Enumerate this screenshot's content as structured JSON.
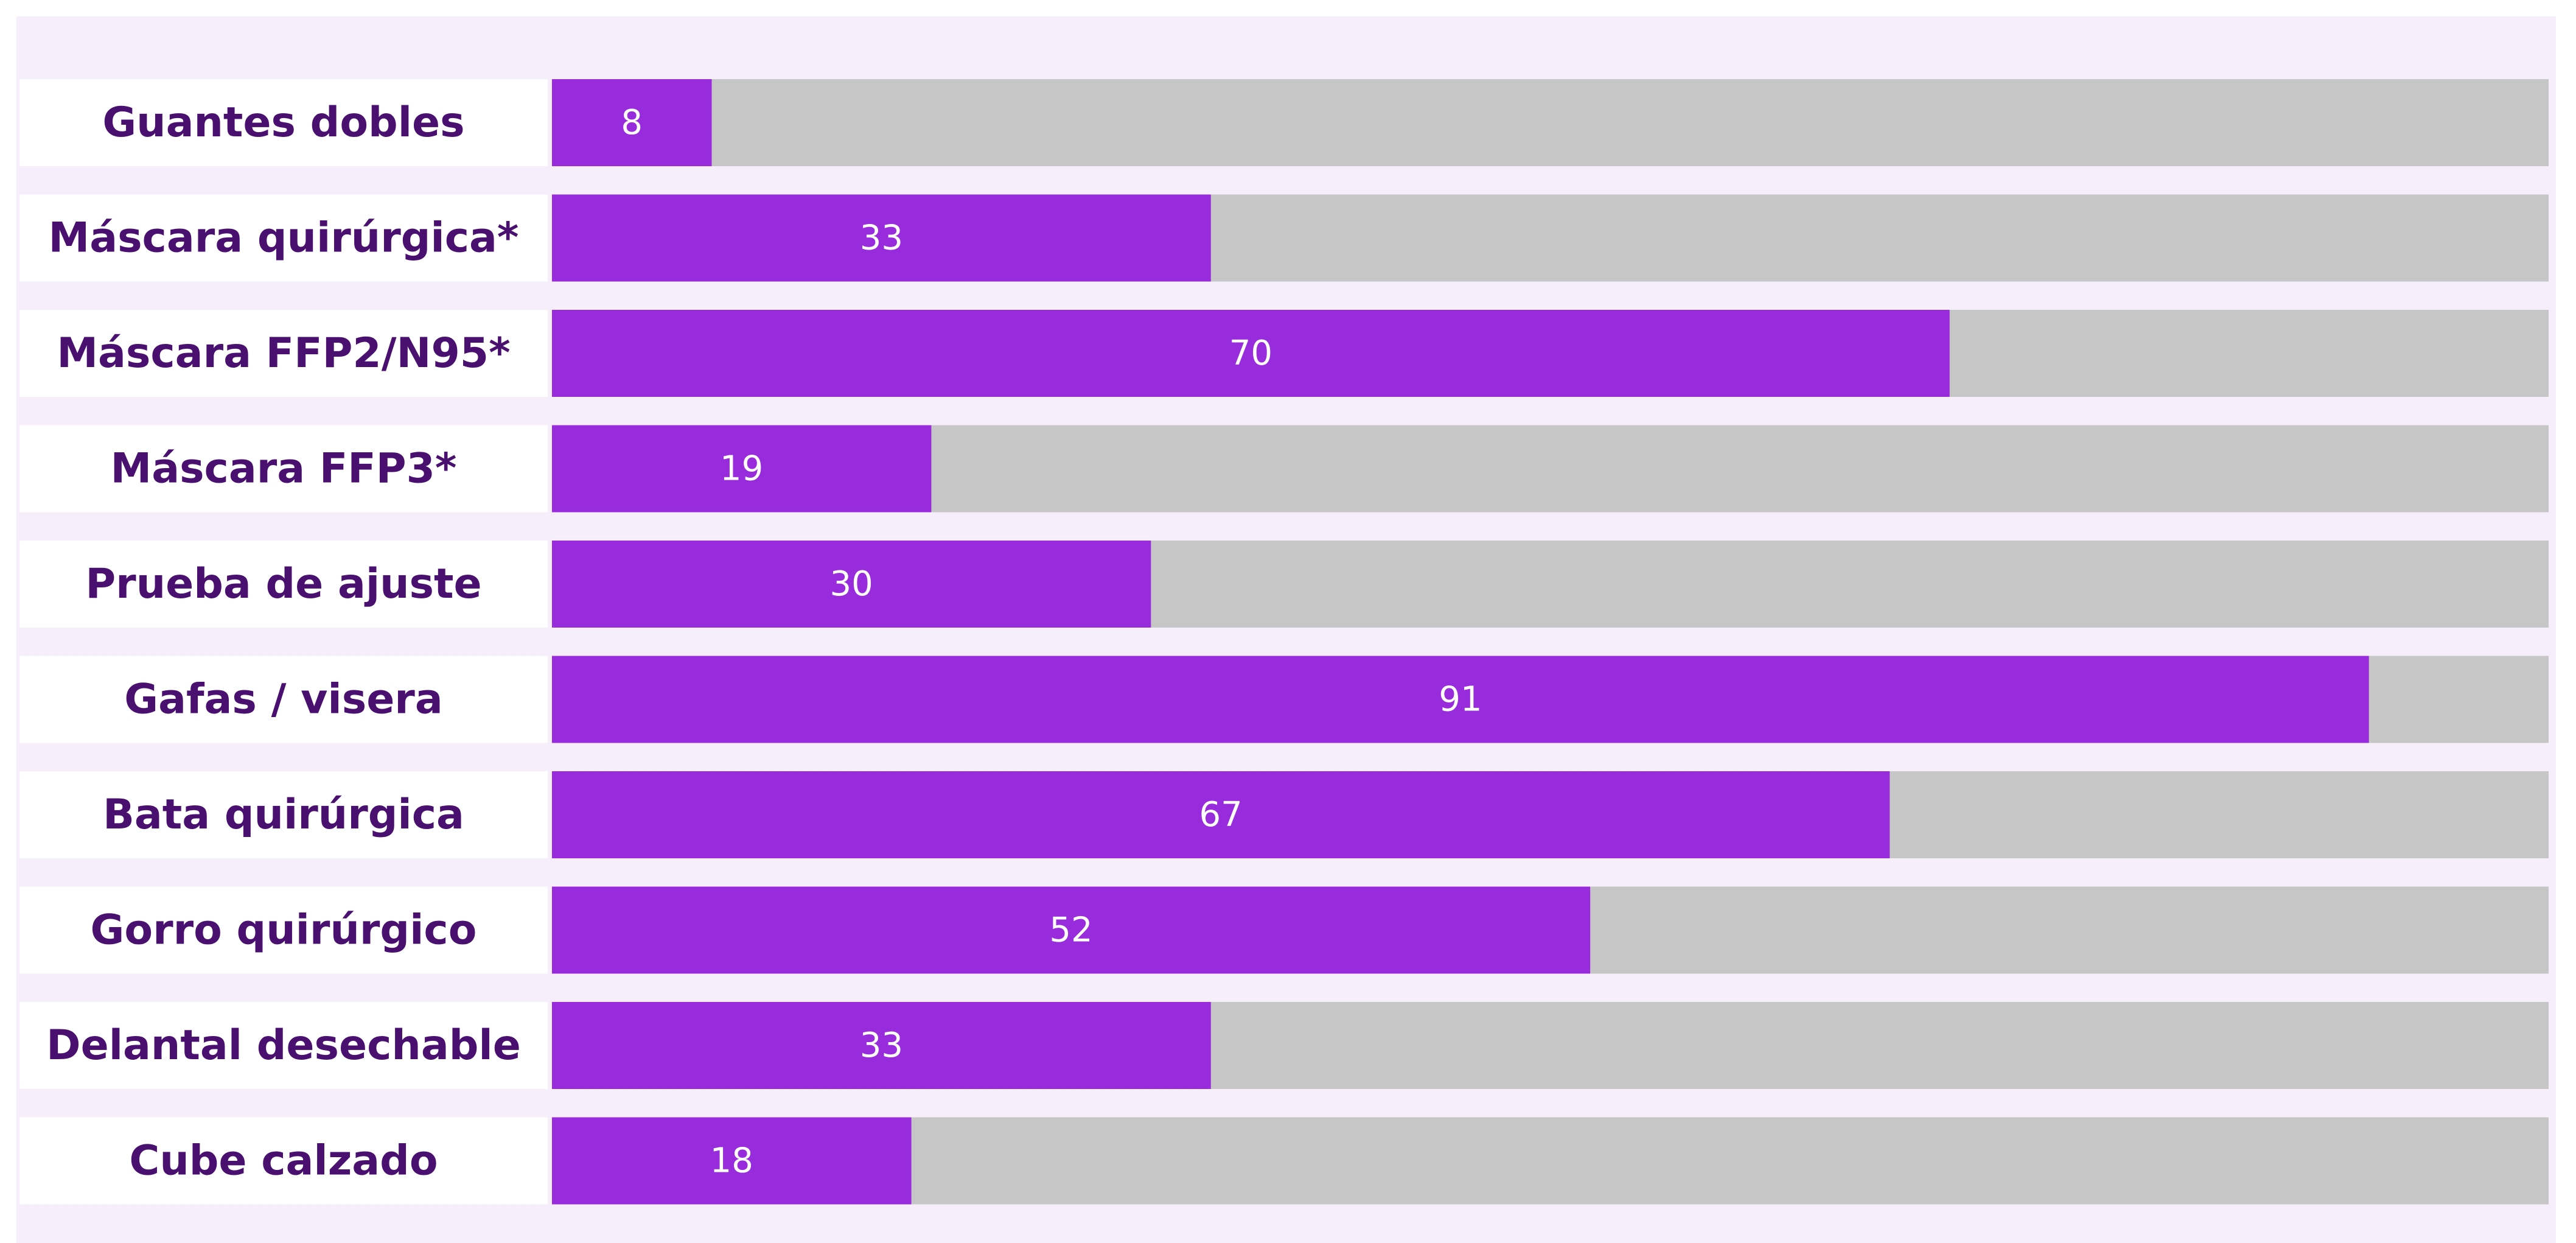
{
  "chart_data": {
    "type": "bar",
    "orientation": "horizontal",
    "categories": [
      "Guantes dobles",
      "Máscara quirúrgica*",
      "Máscara FFP2/N95*",
      "Máscara FFP3*",
      "Prueba de ajuste",
      "Gafas / visera",
      "Bata quirúrgica",
      "Gorro quirúrgico",
      "Delantal desechable",
      "Cube calzado"
    ],
    "values": [
      8,
      33,
      70,
      19,
      30,
      91,
      67,
      52,
      33,
      18
    ],
    "xlim": [
      0,
      100
    ],
    "grid": false,
    "legend": "none"
  },
  "colors": {
    "panel_background": "#f7eefc",
    "label_background": "#ffffff",
    "label_text": "#4a1070",
    "bar_fill": "#982bdc",
    "bar_track": "#c6c6c6",
    "value_text": "#ffffff"
  }
}
